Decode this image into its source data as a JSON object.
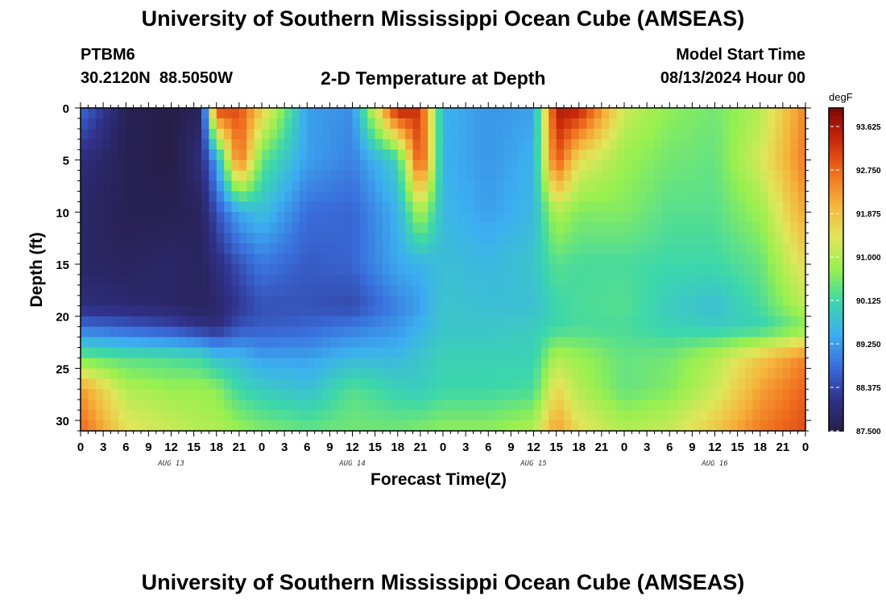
{
  "header": {
    "title": "University of Southern Mississippi Ocean Cube (AMSEAS)",
    "station_id": "PTBM6",
    "station_coords": "30.2120N  88.5050W",
    "plot_title": "2-D Temperature at Depth",
    "model_start_label": "Model Start Time",
    "model_start_value": "08/13/2024 Hour 00"
  },
  "footer": {
    "title": "University of Southern Mississippi Ocean Cube (AMSEAS)"
  },
  "chart_data": {
    "type": "heatmap",
    "title": "2-D Temperature at Depth",
    "xlabel": "Forecast Time(Z)",
    "ylabel": "Depth (ft)",
    "x_tick_labels": [
      "0",
      "3",
      "6",
      "9",
      "12",
      "15",
      "18",
      "21",
      "0",
      "3",
      "6",
      "9",
      "12",
      "15",
      "18",
      "21",
      "0",
      "3",
      "6",
      "9",
      "12",
      "15",
      "18",
      "21",
      "0",
      "3",
      "6",
      "9",
      "12",
      "15",
      "18",
      "21",
      "0"
    ],
    "x_day_labels": [
      {
        "label": "AUG 13",
        "hour": 12
      },
      {
        "label": "AUG 14",
        "hour": 36
      },
      {
        "label": "AUG 15",
        "hour": 60
      },
      {
        "label": "AUG 16",
        "hour": 84
      }
    ],
    "xlim_hours": [
      0,
      96
    ],
    "ylim_ft": [
      31,
      0
    ],
    "y_ticks": [
      0,
      5,
      10,
      15,
      20,
      25,
      30
    ],
    "colorbar": {
      "unit": "degF",
      "tick_labels": [
        "93.625",
        "92.750",
        "91.875",
        "91.000",
        "90.125",
        "89.250",
        "88.375",
        "87.500"
      ],
      "range": [
        87.5,
        94.0
      ]
    },
    "grid_hours": [
      0,
      6,
      12,
      16,
      18,
      21,
      24,
      30,
      36,
      42,
      45,
      48,
      54,
      60,
      63,
      66,
      72,
      78,
      84,
      90,
      96
    ],
    "grid_depth_ft": [
      0,
      5,
      10,
      15,
      19,
      21,
      24,
      27,
      31
    ],
    "temperature_degF": [
      [
        88.8,
        87.6,
        87.5,
        87.7,
        93.2,
        93.0,
        91.8,
        89.3,
        89.1,
        93.6,
        93.2,
        89.5,
        89.2,
        89.3,
        93.6,
        93.5,
        91.2,
        90.7,
        90.5,
        91.0,
        92.5
      ],
      [
        88.0,
        87.6,
        87.5,
        88.0,
        89.3,
        92.8,
        90.4,
        89.3,
        89.0,
        90.0,
        93.2,
        89.5,
        89.2,
        89.5,
        93.0,
        91.5,
        90.8,
        90.5,
        90.4,
        91.3,
        92.6
      ],
      [
        87.8,
        87.6,
        87.6,
        87.7,
        88.5,
        89.4,
        89.7,
        88.8,
        88.7,
        89.5,
        91.0,
        89.6,
        89.3,
        89.6,
        91.0,
        90.6,
        90.6,
        90.3,
        90.3,
        90.8,
        92.2
      ],
      [
        87.8,
        87.7,
        87.8,
        87.7,
        88.0,
        88.5,
        88.9,
        88.6,
        88.7,
        89.4,
        89.5,
        89.7,
        89.6,
        89.8,
        90.3,
        90.2,
        90.2,
        90.1,
        90.1,
        90.4,
        91.6
      ],
      [
        88.0,
        87.9,
        87.8,
        87.7,
        87.8,
        88.2,
        88.5,
        88.5,
        88.4,
        89.0,
        89.3,
        89.8,
        89.7,
        89.7,
        90.1,
        90.2,
        90.3,
        89.9,
        89.7,
        90.2,
        91.1
      ],
      [
        88.8,
        88.6,
        88.4,
        88.1,
        88.0,
        88.5,
        88.6,
        88.7,
        88.9,
        89.2,
        89.5,
        89.8,
        89.8,
        89.9,
        90.1,
        90.2,
        90.2,
        90.0,
        89.9,
        90.0,
        90.6
      ],
      [
        90.5,
        90.3,
        90.2,
        90.1,
        89.7,
        89.6,
        89.3,
        89.3,
        89.6,
        89.6,
        89.8,
        90.0,
        90.0,
        90.0,
        91.0,
        90.8,
        90.4,
        90.5,
        91.0,
        91.8,
        92.5
      ],
      [
        92.3,
        91.0,
        90.8,
        90.8,
        90.7,
        90.1,
        89.9,
        89.7,
        90.3,
        90.0,
        89.9,
        90.1,
        90.1,
        90.2,
        91.6,
        91.0,
        90.4,
        90.6,
        91.2,
        92.2,
        92.8
      ],
      [
        92.8,
        91.5,
        91.2,
        91.0,
        91.0,
        90.8,
        90.6,
        90.4,
        90.5,
        90.5,
        90.6,
        90.7,
        90.7,
        91.0,
        92.3,
        91.5,
        91.0,
        91.2,
        91.8,
        92.6,
        93.0
      ]
    ]
  }
}
